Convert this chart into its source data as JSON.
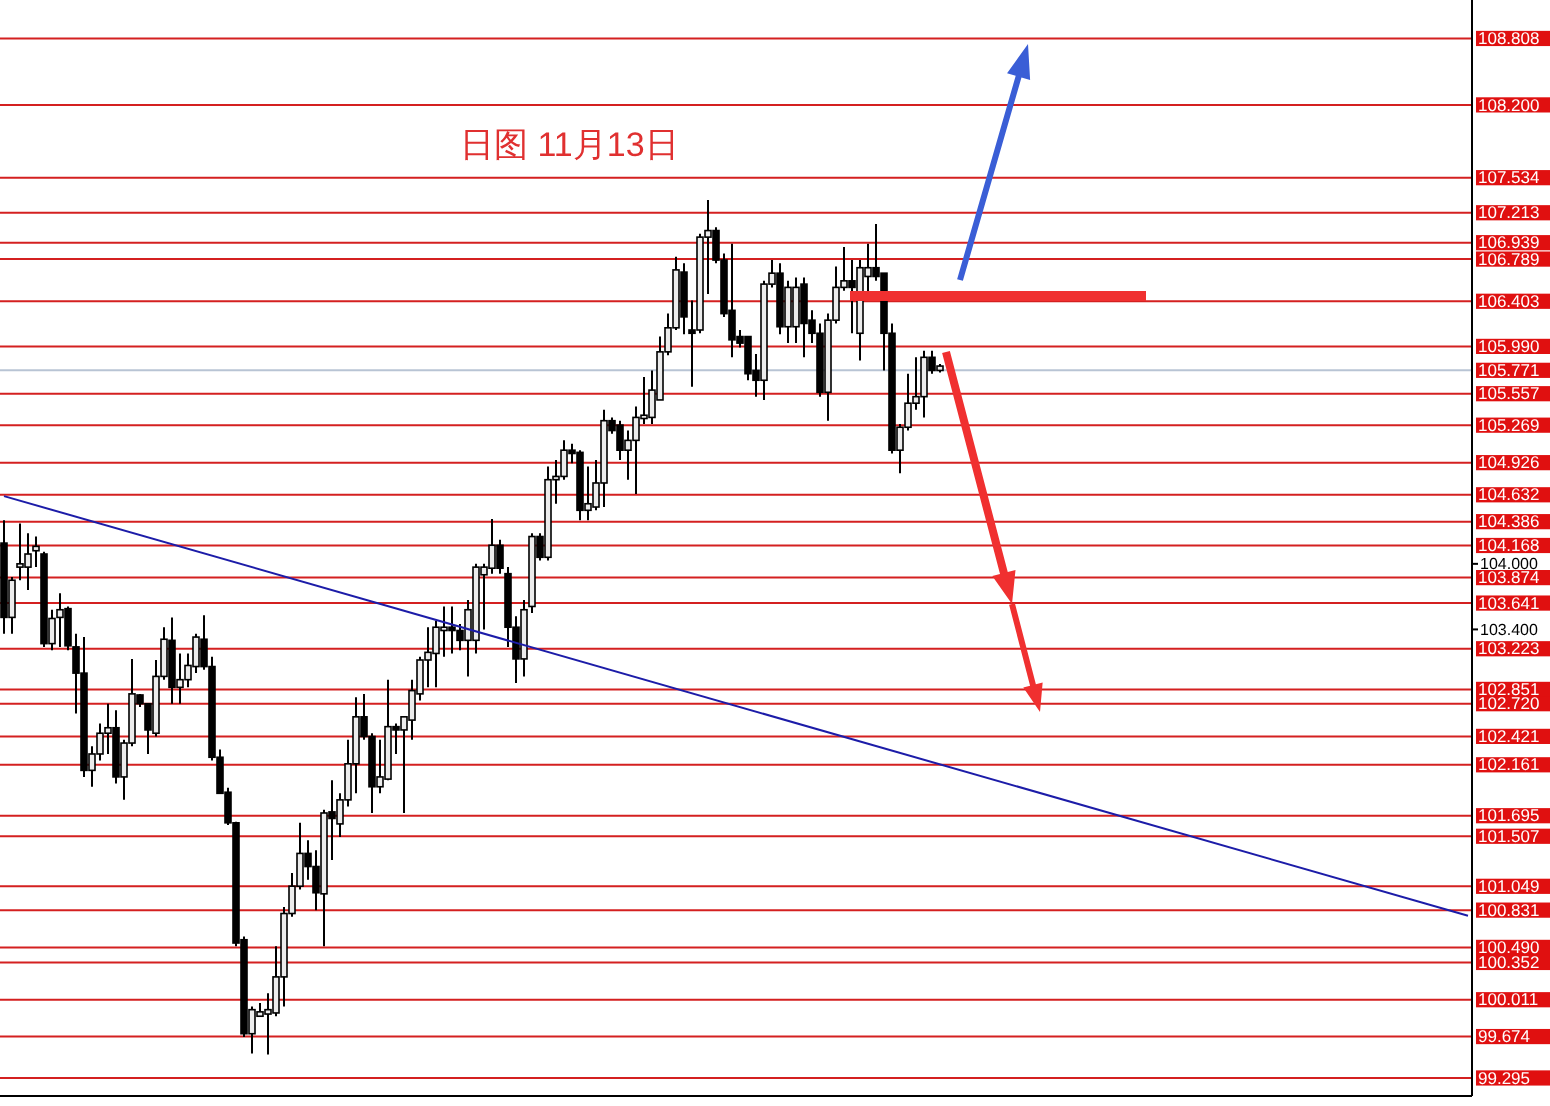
{
  "chart_data": {
    "type": "candlestick",
    "title": "日图 11月13日",
    "tick_labels": "y",
    "ylim": [
      99.13,
      109.16
    ],
    "categories": [
      null,
      null,
      null,
      null,
      null,
      null,
      null,
      null,
      null,
      null,
      null,
      null,
      null,
      null,
      null,
      null,
      null,
      null,
      null,
      null,
      null,
      null,
      null,
      null,
      null,
      null,
      null,
      null,
      null,
      null,
      null,
      null,
      null,
      null,
      null,
      null,
      null,
      null,
      null,
      null,
      null,
      null,
      null,
      null,
      null,
      null,
      null,
      null,
      null,
      null,
      null,
      null,
      null,
      null,
      null,
      null,
      null,
      null,
      null,
      null,
      null,
      null,
      null,
      null,
      null,
      null,
      null,
      null,
      null,
      null,
      null,
      null,
      null,
      null,
      null,
      null,
      null,
      null,
      null,
      null,
      null,
      null,
      null,
      null,
      null,
      null,
      null,
      null,
      null,
      null,
      null,
      null,
      null,
      null,
      null,
      null,
      null,
      null,
      null,
      null,
      null,
      null,
      null,
      null,
      null,
      null,
      null,
      null,
      null,
      null,
      null,
      null,
      null,
      null,
      null,
      null,
      null,
      null,
      null,
      null,
      null,
      null,
      null,
      null,
      null,
      null,
      null,
      null,
      null,
      null,
      null,
      null,
      null,
      null,
      null,
      null,
      null,
      null,
      null,
      null,
      null,
      null,
      null,
      null,
      null,
      null,
      null,
      null,
      null,
      null,
      null,
      null,
      null,
      null,
      null,
      null,
      null,
      null,
      null,
      null,
      null,
      null,
      null,
      null,
      null,
      null,
      null,
      null,
      null,
      null,
      null,
      null,
      null,
      null,
      null,
      null,
      null,
      null,
      null,
      null,
      null,
      null,
      null,
      null
    ],
    "yticks": [
      {
        "value": 104,
        "label": "104.000"
      },
      {
        "value": 103.4,
        "label": "103.400"
      }
    ],
    "series": [
      {
        "ohlc": [
          [
            104.19,
            104.4,
            103.36,
            103.51
          ],
          [
            103.51,
            103.88,
            103.36,
            103.85
          ],
          [
            103.97,
            104.37,
            103.85,
            104.0
          ],
          [
            103.97,
            104.28,
            103.76,
            104.09
          ],
          [
            104.12,
            104.25,
            103.97,
            104.16
          ],
          [
            104.09,
            104.11,
            103.24,
            103.27
          ],
          [
            103.27,
            103.58,
            103.21,
            103.5
          ],
          [
            103.51,
            103.73,
            103.24,
            103.58
          ],
          [
            103.59,
            103.61,
            103.21,
            103.25
          ],
          [
            103.24,
            103.36,
            102.63,
            103.0
          ],
          [
            103.0,
            103.33,
            102.05,
            102.11
          ],
          [
            102.11,
            102.33,
            101.96,
            102.26
          ],
          [
            102.26,
            102.54,
            102.2,
            102.45
          ],
          [
            102.45,
            102.72,
            102.26,
            102.5
          ],
          [
            102.5,
            102.66,
            101.99,
            102.05
          ],
          [
            102.05,
            102.39,
            101.84,
            102.36
          ],
          [
            102.36,
            103.13,
            102.33,
            102.81
          ],
          [
            102.8,
            102.81,
            102.69,
            102.72
          ],
          [
            102.72,
            102.72,
            102.26,
            102.48
          ],
          [
            102.45,
            103.12,
            102.42,
            102.97
          ],
          [
            102.97,
            103.42,
            102.94,
            103.31
          ],
          [
            103.3,
            103.51,
            102.72,
            102.87
          ],
          [
            102.87,
            103.18,
            102.72,
            102.94
          ],
          [
            102.94,
            103.18,
            102.87,
            103.07
          ],
          [
            103.06,
            103.36,
            103.0,
            103.33
          ],
          [
            103.31,
            103.53,
            103.03,
            103.06
          ],
          [
            103.06,
            103.15,
            102.2,
            102.23
          ],
          [
            102.23,
            102.3,
            101.9,
            101.9
          ],
          [
            101.91,
            101.95,
            101.61,
            101.63
          ],
          [
            101.63,
            101.64,
            100.5,
            100.53
          ],
          [
            100.56,
            100.59,
            99.67,
            99.7
          ],
          [
            99.7,
            99.95,
            99.52,
            99.92
          ],
          [
            99.86,
            99.98,
            99.86,
            99.9
          ],
          [
            99.88,
            100.07,
            99.51,
            99.92
          ],
          [
            99.89,
            100.5,
            99.86,
            100.22
          ],
          [
            100.22,
            100.86,
            99.95,
            100.8
          ],
          [
            100.8,
            101.17,
            100.77,
            101.05
          ],
          [
            101.05,
            101.63,
            101.02,
            101.35
          ],
          [
            101.35,
            101.47,
            101.11,
            101.23
          ],
          [
            101.23,
            101.38,
            100.83,
            100.99
          ],
          [
            100.98,
            101.75,
            100.5,
            101.72
          ],
          [
            101.73,
            102.02,
            101.29,
            101.67
          ],
          [
            101.62,
            101.9,
            101.5,
            101.84
          ],
          [
            101.84,
            102.39,
            101.78,
            102.17
          ],
          [
            102.17,
            102.78,
            101.9,
            102.6
          ],
          [
            102.6,
            102.81,
            102.39,
            102.42
          ],
          [
            102.42,
            102.45,
            101.72,
            101.96
          ],
          [
            101.96,
            102.39,
            101.9,
            102.05
          ],
          [
            102.03,
            102.94,
            102.02,
            102.51
          ],
          [
            102.51,
            102.54,
            102.26,
            102.48
          ],
          [
            102.48,
            102.6,
            101.72,
            102.6
          ],
          [
            102.57,
            102.94,
            102.39,
            102.84
          ],
          [
            102.81,
            103.15,
            102.75,
            103.12
          ],
          [
            103.12,
            103.42,
            102.87,
            103.19
          ],
          [
            103.18,
            103.48,
            102.87,
            103.42
          ],
          [
            103.39,
            103.61,
            103.15,
            103.42
          ],
          [
            103.42,
            103.61,
            103.18,
            103.39
          ],
          [
            103.39,
            103.45,
            103.21,
            103.3
          ],
          [
            103.3,
            103.67,
            102.97,
            103.58
          ],
          [
            103.3,
            104.0,
            103.18,
            103.97
          ],
          [
            103.9,
            104.0,
            103.4,
            103.97
          ],
          [
            103.96,
            104.41,
            103.91,
            104.17
          ],
          [
            104.17,
            104.22,
            103.91,
            103.96
          ],
          [
            103.91,
            103.97,
            103.24,
            103.42
          ],
          [
            103.42,
            103.52,
            102.91,
            103.13
          ],
          [
            103.13,
            103.67,
            102.97,
            103.58
          ],
          [
            103.61,
            104.28,
            103.55,
            104.25
          ],
          [
            104.25,
            104.28,
            104.03,
            104.06
          ],
          [
            104.06,
            104.89,
            104.03,
            104.77
          ],
          [
            104.77,
            104.95,
            104.55,
            104.8
          ],
          [
            104.8,
            105.13,
            104.77,
            105.04
          ],
          [
            105.04,
            105.1,
            104.92,
            105.01
          ],
          [
            105.02,
            105.04,
            104.4,
            104.49
          ],
          [
            104.49,
            104.89,
            104.4,
            104.55
          ],
          [
            104.52,
            104.95,
            104.49,
            104.74
          ],
          [
            104.74,
            105.41,
            104.52,
            105.31
          ],
          [
            105.31,
            105.34,
            105.19,
            105.22
          ],
          [
            105.27,
            105.31,
            104.95,
            105.04
          ],
          [
            105.04,
            105.22,
            104.77,
            105.13
          ],
          [
            105.13,
            105.44,
            104.64,
            105.34
          ],
          [
            105.33,
            105.71,
            105.28,
            105.36
          ],
          [
            105.34,
            105.77,
            105.28,
            105.59
          ],
          [
            105.5,
            106.08,
            105.5,
            105.94
          ],
          [
            105.94,
            106.29,
            105.91,
            106.16
          ],
          [
            106.16,
            106.81,
            106.14,
            106.69
          ],
          [
            106.67,
            106.75,
            106.1,
            106.26
          ],
          [
            106.14,
            106.41,
            105.62,
            106.11
          ],
          [
            106.14,
            107.02,
            106.11,
            106.99
          ],
          [
            106.99,
            107.33,
            106.47,
            107.05
          ],
          [
            107.05,
            107.08,
            106.75,
            106.78
          ],
          [
            106.78,
            106.84,
            106.26,
            106.29
          ],
          [
            106.32,
            106.93,
            105.89,
            106.05
          ],
          [
            106.08,
            106.14,
            105.98,
            106.02
          ],
          [
            106.08,
            106.08,
            105.68,
            105.74
          ],
          [
            105.77,
            105.92,
            105.53,
            105.68
          ],
          [
            105.68,
            106.59,
            105.5,
            106.56
          ],
          [
            106.56,
            106.78,
            106.53,
            106.66
          ],
          [
            106.66,
            106.75,
            106.1,
            106.17
          ],
          [
            106.17,
            106.59,
            106.02,
            106.53
          ],
          [
            106.17,
            106.62,
            106.02,
            106.53
          ],
          [
            106.56,
            106.62,
            105.89,
            106.2
          ],
          [
            106.23,
            106.32,
            106.02,
            106.11
          ],
          [
            106.11,
            106.2,
            105.53,
            105.57
          ],
          [
            105.57,
            106.29,
            105.31,
            106.23
          ],
          [
            106.23,
            106.72,
            106.2,
            106.53
          ],
          [
            106.53,
            106.9,
            106.5,
            106.59
          ],
          [
            106.59,
            106.78,
            106.11,
            106.53
          ],
          [
            106.11,
            106.78,
            105.86,
            106.71
          ],
          [
            106.63,
            106.93,
            106.47,
            106.71
          ],
          [
            106.71,
            107.11,
            106.59,
            106.63
          ],
          [
            106.66,
            106.66,
            105.77,
            106.11
          ],
          [
            106.11,
            106.2,
            105.01,
            105.04
          ],
          [
            105.04,
            105.28,
            104.83,
            105.25
          ],
          [
            105.25,
            105.74,
            105.22,
            105.47
          ],
          [
            105.47,
            105.89,
            105.41,
            105.53
          ],
          [
            105.53,
            105.95,
            105.34,
            105.89
          ],
          [
            105.89,
            105.95,
            105.74,
            105.77
          ],
          [
            105.77,
            105.83,
            105.75,
            105.81
          ],
          null,
          null,
          null,
          null,
          null,
          null,
          null,
          null,
          null,
          null,
          null,
          null,
          null,
          null,
          null,
          null,
          null,
          null,
          null,
          null,
          null,
          null,
          null,
          null,
          null,
          null,
          null,
          null,
          null,
          null,
          null,
          null,
          null,
          null,
          null,
          null,
          null,
          null,
          null,
          null,
          null,
          null,
          null,
          null,
          null,
          null,
          null,
          null,
          null,
          null,
          null,
          null,
          null,
          null,
          null,
          null,
          null,
          null,
          null,
          null,
          null,
          null,
          null,
          null,
          null,
          null
        ]
      },
      {
        "type": "line",
        "color": "#1c1ca8",
        "values": [
          104.62,
          null,
          null,
          null,
          null,
          null,
          null,
          null,
          null,
          null,
          null,
          null,
          null,
          null,
          null,
          null,
          null,
          null,
          null,
          null,
          null,
          null,
          null,
          null,
          null,
          null,
          null,
          null,
          null,
          null,
          null,
          null,
          null,
          null,
          null,
          null,
          null,
          null,
          null,
          null,
          null,
          null,
          null,
          null,
          null,
          null,
          null,
          null,
          null,
          null,
          null,
          null,
          null,
          null,
          null,
          null,
          null,
          null,
          null,
          null,
          null,
          null,
          null,
          null,
          null,
          null,
          null,
          null,
          null,
          null,
          null,
          null,
          null,
          null,
          null,
          null,
          null,
          null,
          null,
          null,
          null,
          null,
          null,
          null,
          null,
          null,
          null,
          null,
          null,
          null,
          null,
          null,
          null,
          null,
          null,
          null,
          null,
          null,
          null,
          null,
          null,
          null,
          null,
          null,
          null,
          null,
          null,
          null,
          null,
          null,
          null,
          null,
          null,
          null,
          null,
          null,
          null,
          null,
          null,
          null,
          null,
          null,
          null,
          null,
          null,
          null,
          null,
          null,
          null,
          null,
          null,
          null,
          null,
          null,
          null,
          null,
          null,
          null,
          null,
          null,
          null,
          null,
          null,
          null,
          null,
          null,
          null,
          null,
          null,
          null,
          null,
          null,
          null,
          null,
          null,
          null,
          null,
          null,
          null,
          null,
          null,
          null,
          null,
          null,
          null,
          null,
          null,
          null,
          null,
          null,
          null,
          null,
          null,
          null,
          null,
          null,
          null,
          null,
          null,
          null,
          null,
          null,
          null,
          100.78
        ]
      }
    ],
    "ref_lines": [
      {
        "axis": "y",
        "value": 108.808,
        "label": "108.808",
        "color": "#d42020"
      },
      {
        "axis": "y",
        "value": 108.2,
        "label": "108.200",
        "color": "#d42020"
      },
      {
        "axis": "y",
        "value": 107.534,
        "label": "107.534",
        "color": "#d42020"
      },
      {
        "axis": "y",
        "value": 107.213,
        "label": "107.213",
        "color": "#d42020"
      },
      {
        "axis": "y",
        "value": 106.939,
        "label": "106.939",
        "color": "#d42020"
      },
      {
        "axis": "y",
        "value": 106.789,
        "label": "106.789",
        "color": "#d42020"
      },
      {
        "axis": "y",
        "value": 106.403,
        "label": "106.403",
        "color": "#d42020"
      },
      {
        "axis": "y",
        "value": 105.99,
        "label": "105.990",
        "color": "#d42020"
      },
      {
        "axis": "y",
        "value": 105.771,
        "label": "105.771",
        "color": "#b8c4d4"
      },
      {
        "axis": "y",
        "value": 105.557,
        "label": "105.557",
        "color": "#d42020"
      },
      {
        "axis": "y",
        "value": 105.269,
        "label": "105.269",
        "color": "#d42020"
      },
      {
        "axis": "y",
        "value": 104.926,
        "label": "104.926",
        "color": "#d42020"
      },
      {
        "axis": "y",
        "value": 104.632,
        "label": "104.632",
        "color": "#d42020"
      },
      {
        "axis": "y",
        "value": 104.386,
        "label": "104.386",
        "color": "#d42020"
      },
      {
        "axis": "y",
        "value": 104.168,
        "label": "104.168",
        "color": "#d42020"
      },
      {
        "axis": "y",
        "value": 103.874,
        "label": "103.874",
        "color": "#d42020"
      },
      {
        "axis": "y",
        "value": 103.641,
        "label": "103.641",
        "color": "#d42020"
      },
      {
        "axis": "y",
        "value": 103.223,
        "label": "103.223",
        "color": "#d42020"
      },
      {
        "axis": "y",
        "value": 102.851,
        "label": "102.851",
        "color": "#d42020"
      },
      {
        "axis": "y",
        "value": 102.72,
        "label": "102.720",
        "color": "#d42020"
      },
      {
        "axis": "y",
        "value": 102.421,
        "label": "102.421",
        "color": "#d42020"
      },
      {
        "axis": "y",
        "value": 102.161,
        "label": "102.161",
        "color": "#d42020"
      },
      {
        "axis": "y",
        "value": 101.695,
        "label": "101.695",
        "color": "#d42020"
      },
      {
        "axis": "y",
        "value": 101.507,
        "label": "101.507",
        "color": "#d42020"
      },
      {
        "axis": "y",
        "value": 101.049,
        "label": "101.049",
        "color": "#d42020"
      },
      {
        "axis": "y",
        "value": 100.831,
        "label": "100.831",
        "color": "#d42020"
      },
      {
        "axis": "y",
        "value": 100.49,
        "label": "100.490",
        "color": "#d42020"
      },
      {
        "axis": "y",
        "value": 100.352,
        "label": "100.352",
        "color": "#d42020"
      },
      {
        "axis": "y",
        "value": 100.011,
        "label": "100.011",
        "color": "#d42020"
      },
      {
        "axis": "y",
        "value": 99.674,
        "label": "99.674",
        "color": "#d42020"
      },
      {
        "axis": "y",
        "value": 99.295,
        "label": "99.295",
        "color": "#d42020"
      }
    ]
  }
}
